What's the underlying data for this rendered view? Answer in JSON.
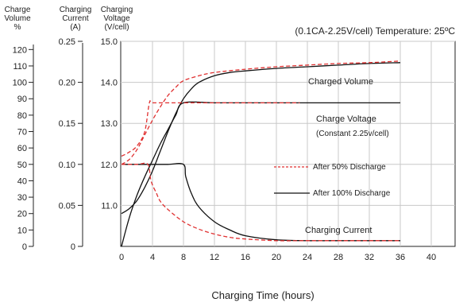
{
  "chart_data": {
    "type": "line",
    "title": "(0.1CA-2.25V/cell) Temperature: 25ºC",
    "xlabel": "Charging Time (hours)",
    "xlim": [
      0,
      42
    ],
    "xticks": [
      "0",
      "4",
      "8",
      "12",
      "16",
      "20",
      "24",
      "28",
      "32",
      "36",
      "40"
    ],
    "axes": {
      "volume": {
        "label": [
          "Charge",
          "Volume",
          "%"
        ],
        "ylim": [
          0,
          125
        ],
        "ticks": [
          "0",
          "10",
          "20",
          "30",
          "40",
          "50",
          "60",
          "70",
          "80",
          "90",
          "100",
          "110",
          "120"
        ]
      },
      "current": {
        "label": [
          "Charging",
          "Current",
          "(A)"
        ],
        "ylim": [
          0,
          0.25
        ],
        "ticks": [
          "0",
          "0.05",
          "0.10",
          "0.15",
          "0.20",
          "0.25"
        ]
      },
      "voltage": {
        "label": [
          "Charging",
          "Voltage",
          "(V/cell)"
        ],
        "ylim": [
          10.0,
          15.0
        ],
        "ticks": [
          "11.0",
          "12.0",
          "13.0",
          "14.0",
          "15.0"
        ]
      }
    },
    "annotations": {
      "volume": "Charged Volume",
      "voltage": "Charge Voltage",
      "voltage_note": "(Constant 2.25v/cell)",
      "current": "Charging Current"
    },
    "legend": {
      "position": "center-right",
      "entries": [
        {
          "label": "After 50% Discharge",
          "color": "#e03030",
          "dash": "dashed"
        },
        {
          "label": "After 100% Discharge",
          "color": "#111111",
          "dash": "solid"
        }
      ]
    },
    "series": [
      {
        "name": "After 100% Discharge",
        "axis": "volume",
        "color": "#111111",
        "dash": false,
        "x": [
          0,
          1,
          2,
          3,
          4,
          5,
          6,
          7,
          8,
          9,
          10,
          12,
          14,
          16,
          20,
          24,
          28,
          32,
          36
        ],
        "y": [
          20,
          23,
          28,
          36,
          46,
          58,
          70,
          81,
          90,
          96,
          100,
          104,
          106,
          107,
          108.5,
          109.5,
          110.5,
          111.5,
          112
        ]
      },
      {
        "name": "After 50% Discharge",
        "axis": "volume",
        "color": "#e03030",
        "dash": true,
        "x": [
          0,
          1,
          2,
          3,
          4,
          5,
          6,
          7,
          8,
          10,
          12,
          16,
          20,
          24,
          28,
          32,
          36
        ],
        "y": [
          50,
          53,
          59,
          68,
          77,
          85,
          92,
          97,
          101,
          104,
          106,
          108,
          109.5,
          110.5,
          111.5,
          112,
          113
        ]
      },
      {
        "name": "After 100% Discharge",
        "axis": "voltage",
        "color": "#111111",
        "dash": false,
        "x": [
          0,
          1,
          2,
          3,
          4,
          5,
          6,
          7,
          8,
          12,
          16,
          20,
          24,
          28,
          32,
          36
        ],
        "y": [
          10.0,
          10.7,
          11.25,
          11.7,
          12.1,
          12.5,
          12.85,
          13.2,
          13.5,
          13.5,
          13.5,
          13.5,
          13.5,
          13.5,
          13.5,
          13.5
        ]
      },
      {
        "name": "After 50% Discharge",
        "axis": "voltage",
        "color": "#e03030",
        "dash": true,
        "x": [
          0,
          1,
          2,
          3,
          3.6,
          4,
          6,
          8,
          12,
          16,
          20,
          23
        ],
        "y": [
          12.2,
          12.3,
          12.45,
          12.8,
          13.5,
          13.5,
          13.5,
          13.5,
          13.5,
          13.5,
          13.5,
          13.5
        ]
      },
      {
        "name": "After 100% Discharge",
        "axis": "current",
        "color": "#111111",
        "dash": false,
        "x": [
          0,
          2,
          4,
          6,
          8,
          8.3,
          9,
          10,
          12,
          14,
          16,
          20,
          24,
          28,
          32,
          36
        ],
        "y": [
          0.1,
          0.1,
          0.1,
          0.1,
          0.1,
          0.085,
          0.065,
          0.048,
          0.03,
          0.02,
          0.013,
          0.008,
          0.007,
          0.007,
          0.007,
          0.007
        ]
      },
      {
        "name": "After 50% Discharge",
        "axis": "current",
        "color": "#e03030",
        "dash": true,
        "x": [
          0,
          2,
          3.4,
          3.8,
          4.5,
          5,
          6,
          8,
          10,
          12,
          14,
          16,
          20,
          24,
          28,
          32,
          36
        ],
        "y": [
          0.1,
          0.1,
          0.1,
          0.08,
          0.065,
          0.055,
          0.045,
          0.03,
          0.021,
          0.015,
          0.011,
          0.009,
          0.007,
          0.007,
          0.007,
          0.007,
          0.007
        ]
      }
    ]
  }
}
